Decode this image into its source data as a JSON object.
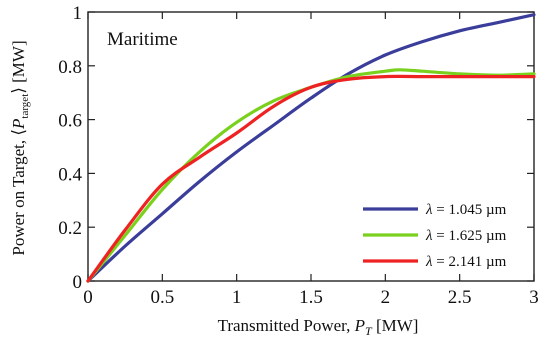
{
  "chart_data": {
    "type": "line",
    "title": "",
    "annotation": "Maritime",
    "xlabel": {
      "prefix": "Transmitted Power, ",
      "var": "P",
      "sub": "T",
      "suffix": " [MW]"
    },
    "ylabel": {
      "prefix": "Power on Target, ⟨",
      "var": "P",
      "sub": "target",
      "suffix": "⟩ [MW]"
    },
    "xlim": [
      0,
      3
    ],
    "ylim": [
      0,
      1
    ],
    "xticks": [
      0,
      0.5,
      1,
      1.5,
      2,
      2.5,
      3
    ],
    "xtick_labels": [
      "0",
      "0.5",
      "1",
      "1.5",
      "2",
      "2.5",
      "3"
    ],
    "yticks": [
      0,
      0.2,
      0.4,
      0.6,
      0.8,
      1
    ],
    "ytick_labels": [
      "0",
      "0.2",
      "0.4",
      "0.6",
      "0.8",
      "1"
    ],
    "grid": false,
    "legend_position": "bottom-right",
    "series": [
      {
        "name": "λ = 1.045 µm",
        "color": "#3a3d9a",
        "x": [
          0,
          0.25,
          0.5,
          0.75,
          1.0,
          1.25,
          1.5,
          1.75,
          2.0,
          2.25,
          2.5,
          2.75,
          3.0
        ],
        "y": [
          0,
          0.13,
          0.25,
          0.37,
          0.48,
          0.58,
          0.68,
          0.77,
          0.84,
          0.89,
          0.93,
          0.96,
          0.99
        ]
      },
      {
        "name": "λ = 1.625 µm",
        "color": "#7ad11d",
        "x": [
          0,
          0.25,
          0.5,
          0.75,
          1.0,
          1.25,
          1.5,
          1.75,
          2.0,
          2.1,
          2.25,
          2.5,
          2.75,
          3.0
        ],
        "y": [
          0,
          0.17,
          0.34,
          0.48,
          0.59,
          0.67,
          0.72,
          0.76,
          0.78,
          0.785,
          0.78,
          0.77,
          0.765,
          0.77
        ]
      },
      {
        "name": "λ = 2.141 µm",
        "color": "#ee2222",
        "x": [
          0,
          0.25,
          0.5,
          0.75,
          1.0,
          1.25,
          1.5,
          1.75,
          2.0,
          2.25,
          2.5,
          2.75,
          3.0
        ],
        "y": [
          0,
          0.19,
          0.36,
          0.46,
          0.55,
          0.65,
          0.72,
          0.75,
          0.76,
          0.76,
          0.76,
          0.76,
          0.76
        ]
      }
    ]
  }
}
